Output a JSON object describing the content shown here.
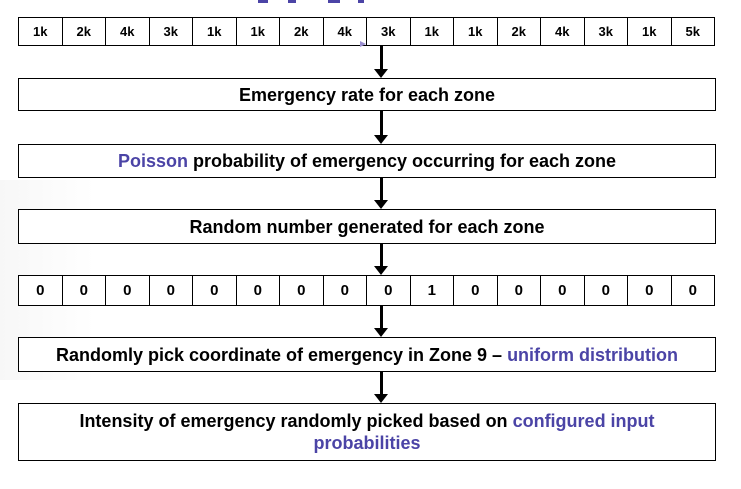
{
  "zone_values": [
    "1k",
    "2k",
    "4k",
    "3k",
    "1k",
    "1k",
    "2k",
    "4k",
    "3k",
    "1k",
    "1k",
    "2k",
    "4k",
    "3k",
    "1k",
    "5k"
  ],
  "steps": {
    "rate": "Emergency rate for each zone",
    "poisson": {
      "highlight": "Poisson",
      "rest": " probability of emergency occurring for each zone"
    },
    "random": "Random number generated for each zone",
    "pick": {
      "text": "Randomly pick coordinate of emergency in Zone 9 – ",
      "highlight": "uniform distribution"
    },
    "intensity": {
      "text": "Intensity of emergency randomly picked based on ",
      "highlight": "configured input probabilities"
    }
  },
  "binary_values": [
    "0",
    "0",
    "0",
    "0",
    "0",
    "0",
    "0",
    "0",
    "0",
    "1",
    "0",
    "0",
    "0",
    "0",
    "0",
    "0"
  ],
  "colors": {
    "highlight": "#4b44a6",
    "border": "#000000"
  }
}
